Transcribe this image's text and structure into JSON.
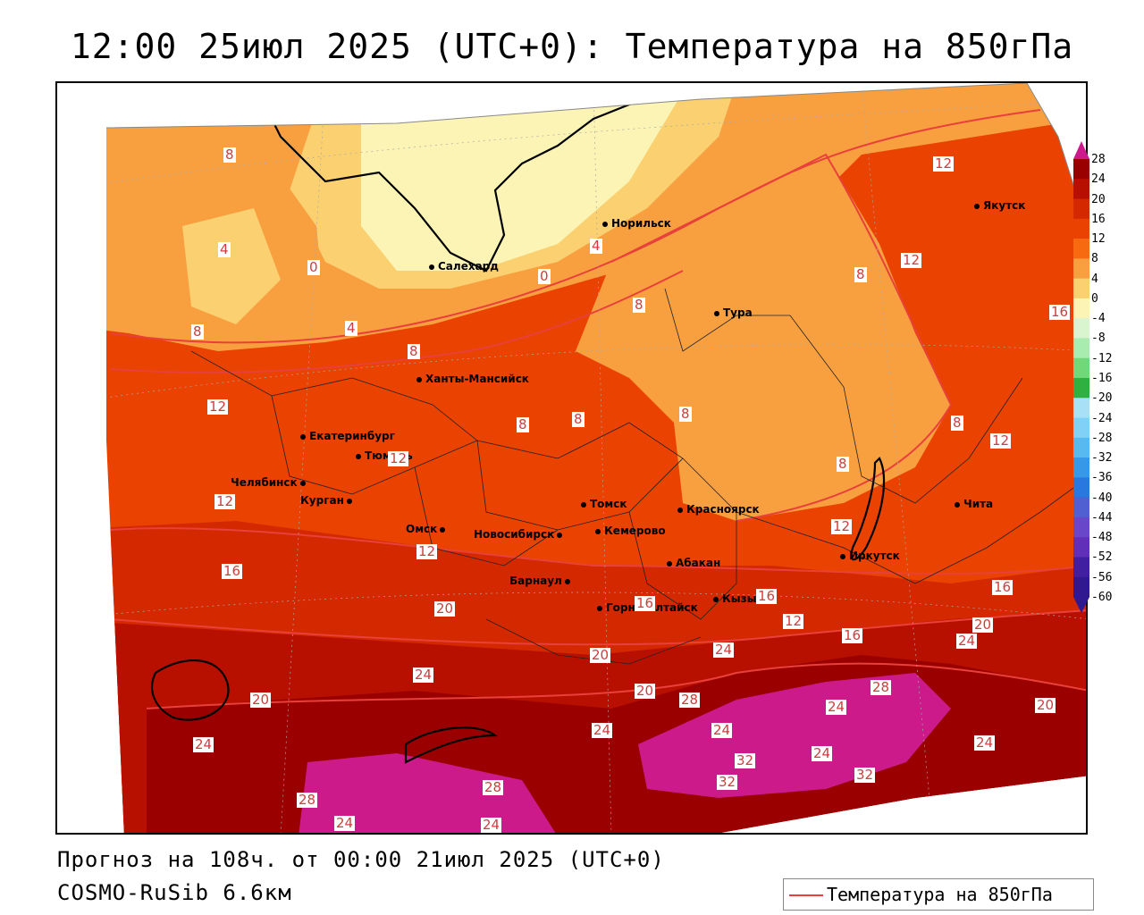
{
  "title": "12:00 25июл 2025 (UTC+0): Температура на 850гПа",
  "footer": {
    "forecast": "Прогноз на 108ч. от 00:00 21июл 2025 (UTC+0)",
    "model": "COSMO-RuSib 6.6км"
  },
  "legend": {
    "label": "Температура на 850гПа",
    "line_color": "#e8403a"
  },
  "colorbar": {
    "labels": [
      "28",
      "24",
      "20",
      "16",
      "12",
      "8",
      "4",
      "0",
      "-4",
      "-8",
      "-12",
      "-16",
      "-20",
      "-24",
      "-28",
      "-32",
      "-36",
      "-40",
      "-44",
      "-48",
      "-52",
      "-56",
      "-60"
    ],
    "colors": [
      "#cc1a8a",
      "#9a0000",
      "#b81000",
      "#d42800",
      "#ea4200",
      "#f86a10",
      "#f8a040",
      "#fad070",
      "#fcf4b4",
      "#d8f5d0",
      "#a8ecb0",
      "#70d878",
      "#30b040",
      "#a8e0f8",
      "#80d0f8",
      "#58b8f0",
      "#3898e8",
      "#2878e0",
      "#5060d0",
      "#6848c8",
      "#6030b8",
      "#4020a0",
      "#301890"
    ]
  },
  "cities": [
    {
      "name": "Норильск"
    },
    {
      "name": "Салехард"
    },
    {
      "name": "Якутск"
    },
    {
      "name": "Тура"
    },
    {
      "name": "Ханты-Мансийск"
    },
    {
      "name": "Екатеринбург"
    },
    {
      "name": "Тюмень"
    },
    {
      "name": "Челябинск"
    },
    {
      "name": "Курган"
    },
    {
      "name": "Омск"
    },
    {
      "name": "Новосибирск"
    },
    {
      "name": "Томск"
    },
    {
      "name": "Кемерово"
    },
    {
      "name": "Красноярск"
    },
    {
      "name": "Барнаул"
    },
    {
      "name": "Абакан"
    },
    {
      "name": "Иркутск"
    },
    {
      "name": "Чита"
    },
    {
      "name": "Горно-Алтайск"
    },
    {
      "name": "Кызыл"
    }
  ],
  "isoline_labels": [
    "8",
    "4",
    "0",
    "4",
    "0",
    "4",
    "8",
    "12",
    "8",
    "12",
    "16",
    "8",
    "8",
    "8",
    "8",
    "12",
    "8",
    "12",
    "12",
    "12",
    "16",
    "12",
    "16",
    "20",
    "20",
    "12",
    "16",
    "20",
    "24",
    "20",
    "24",
    "24",
    "28",
    "24",
    "20",
    "28",
    "28",
    "24",
    "32",
    "32",
    "24",
    "32",
    "24",
    "24",
    "28",
    "28",
    "24",
    "24",
    "20",
    "20",
    "24",
    "16",
    "16",
    "8",
    "12",
    "8"
  ]
}
